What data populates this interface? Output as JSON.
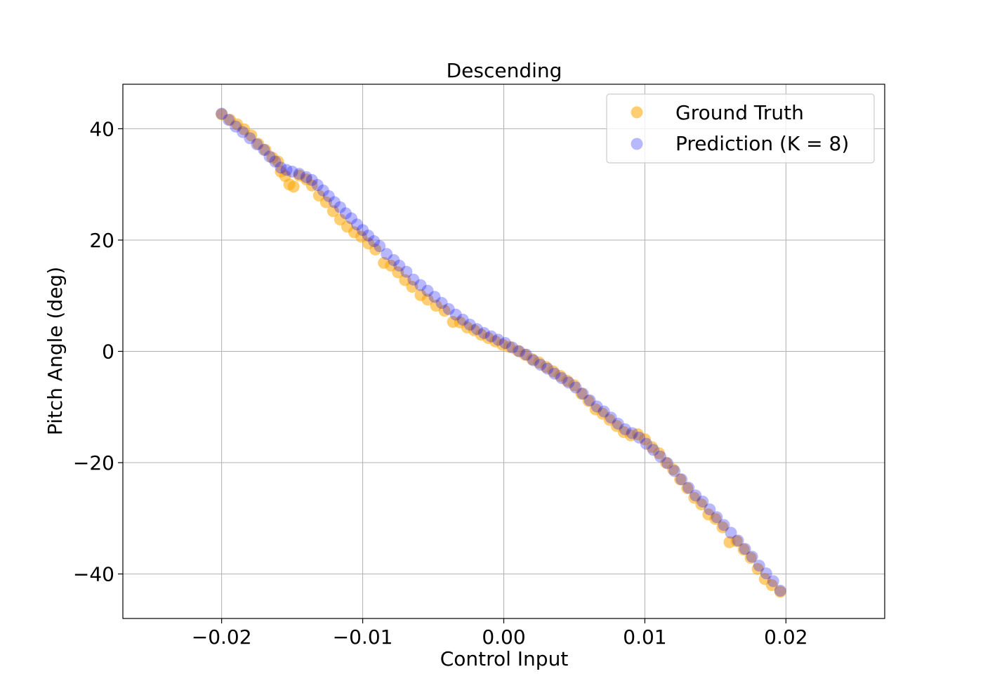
{
  "chart_data": {
    "type": "scatter",
    "title": "Descending",
    "xlabel": "Control Input",
    "ylabel": "Pitch Angle (deg)",
    "xlim": [
      -0.027,
      0.027
    ],
    "ylim": [
      -48,
      48
    ],
    "xticks": [
      -0.02,
      -0.01,
      0.0,
      0.01,
      0.02
    ],
    "xtick_labels": [
      "−0.02",
      "−0.01",
      "0.00",
      "0.01",
      "0.02"
    ],
    "yticks": [
      -40,
      -20,
      0,
      20,
      40
    ],
    "ytick_labels": [
      "−40",
      "−20",
      "0",
      "20",
      "40"
    ],
    "grid": true,
    "legend_position": "top-right",
    "series": [
      {
        "name": "Ground Truth",
        "color": "#FFA500",
        "opacity": 0.55,
        "points": [
          [
            -0.02,
            42.6
          ],
          [
            -0.0194,
            41.6
          ],
          [
            -0.0189,
            40.8
          ],
          [
            -0.0184,
            39.9
          ],
          [
            -0.0179,
            38.8
          ],
          [
            -0.0174,
            37.3
          ],
          [
            -0.0169,
            36.2
          ],
          [
            -0.0164,
            34.8
          ],
          [
            -0.016,
            34.1
          ],
          [
            -0.0158,
            32.3
          ],
          [
            -0.0155,
            31.5
          ],
          [
            -0.0152,
            30.0
          ],
          [
            -0.0149,
            29.6
          ],
          [
            -0.0145,
            31.6
          ],
          [
            -0.014,
            30.9
          ],
          [
            -0.0136,
            29.8
          ],
          [
            -0.0131,
            28.0
          ],
          [
            -0.0126,
            26.8
          ],
          [
            -0.0121,
            25.2
          ],
          [
            -0.0116,
            23.7
          ],
          [
            -0.0111,
            22.4
          ],
          [
            -0.0106,
            21.4
          ],
          [
            -0.0101,
            20.6
          ],
          [
            -0.0096,
            19.4
          ],
          [
            -0.0091,
            18.3
          ],
          [
            -0.0085,
            15.9
          ],
          [
            -0.008,
            15.4
          ],
          [
            -0.0075,
            14.2
          ],
          [
            -0.007,
            12.8
          ],
          [
            -0.0065,
            11.6
          ],
          [
            -0.0059,
            10.1
          ],
          [
            -0.0054,
            9.3
          ],
          [
            -0.0048,
            8.2
          ],
          [
            -0.0042,
            7.3
          ],
          [
            -0.0036,
            5.3
          ],
          [
            -0.0031,
            5.2
          ],
          [
            -0.0026,
            4.3
          ],
          [
            -0.0021,
            3.8
          ],
          [
            -0.0016,
            3.0
          ],
          [
            -0.0011,
            2.4
          ],
          [
            -0.0006,
            1.8
          ],
          [
            -0.0001,
            1.2
          ],
          [
            0.0004,
            0.8
          ],
          [
            0.001,
            0.1
          ],
          [
            0.0015,
            -0.6
          ],
          [
            0.002,
            -1.4
          ],
          [
            0.0025,
            -2.0
          ],
          [
            0.003,
            -2.8
          ],
          [
            0.0035,
            -3.6
          ],
          [
            0.004,
            -4.4
          ],
          [
            0.0045,
            -5.3
          ],
          [
            0.005,
            -6.1
          ],
          [
            0.0055,
            -7.6
          ],
          [
            0.006,
            -8.9
          ],
          [
            0.0065,
            -10.4
          ],
          [
            0.007,
            -11.2
          ],
          [
            0.0075,
            -12.3
          ],
          [
            0.008,
            -13.4
          ],
          [
            0.0085,
            -14.5
          ],
          [
            0.009,
            -15.1
          ],
          [
            0.0095,
            -14.9
          ],
          [
            0.01,
            -15.8
          ],
          [
            0.0105,
            -17.2
          ],
          [
            0.011,
            -18.3
          ],
          [
            0.0115,
            -20.0
          ],
          [
            0.012,
            -21.2
          ],
          [
            0.0125,
            -23.0
          ],
          [
            0.013,
            -24.6
          ],
          [
            0.0135,
            -26.3
          ],
          [
            0.014,
            -27.5
          ],
          [
            0.0145,
            -29.3
          ],
          [
            0.015,
            -30.1
          ],
          [
            0.0155,
            -31.6
          ],
          [
            0.016,
            -34.3
          ],
          [
            0.0165,
            -34.1
          ],
          [
            0.017,
            -35.6
          ],
          [
            0.0175,
            -37.1
          ],
          [
            0.018,
            -39.1
          ],
          [
            0.0185,
            -40.9
          ],
          [
            0.019,
            -42.0
          ],
          [
            0.0196,
            -43.2
          ]
        ]
      },
      {
        "name": "Prediction (K = 8)",
        "color": "#0000FF",
        "opacity": 0.28,
        "points": [
          [
            -0.02,
            42.7
          ],
          [
            -0.0195,
            41.6
          ],
          [
            -0.019,
            40.4
          ],
          [
            -0.0185,
            39.4
          ],
          [
            -0.018,
            38.3
          ],
          [
            -0.0175,
            37.2
          ],
          [
            -0.017,
            36.2
          ],
          [
            -0.0166,
            35.0
          ],
          [
            -0.0162,
            34.1
          ],
          [
            -0.0158,
            33.0
          ],
          [
            -0.0154,
            32.6
          ],
          [
            -0.015,
            32.3
          ],
          [
            -0.0145,
            31.9
          ],
          [
            -0.014,
            31.3
          ],
          [
            -0.0136,
            30.8
          ],
          [
            -0.0132,
            29.9
          ],
          [
            -0.0128,
            28.9
          ],
          [
            -0.0124,
            27.9
          ],
          [
            -0.012,
            26.8
          ],
          [
            -0.0116,
            25.9
          ],
          [
            -0.0112,
            24.8
          ],
          [
            -0.0108,
            23.9
          ],
          [
            -0.0104,
            22.8
          ],
          [
            -0.01,
            21.8
          ],
          [
            -0.0096,
            20.8
          ],
          [
            -0.0092,
            19.8
          ],
          [
            -0.0088,
            18.9
          ],
          [
            -0.0083,
            17.5
          ],
          [
            -0.0078,
            16.4
          ],
          [
            -0.0074,
            15.4
          ],
          [
            -0.0069,
            14.3
          ],
          [
            -0.0064,
            12.9
          ],
          [
            -0.0059,
            11.9
          ],
          [
            -0.0054,
            10.9
          ],
          [
            -0.0049,
            9.8
          ],
          [
            -0.0044,
            8.7
          ],
          [
            -0.0039,
            7.6
          ],
          [
            -0.0034,
            6.6
          ],
          [
            -0.0029,
            5.7
          ],
          [
            -0.0024,
            4.8
          ],
          [
            -0.0019,
            4.0
          ],
          [
            -0.0014,
            3.3
          ],
          [
            -0.0009,
            2.7
          ],
          [
            -0.0004,
            2.1
          ],
          [
            0.0001,
            1.5
          ],
          [
            0.0006,
            0.7
          ],
          [
            0.0011,
            0.0
          ],
          [
            0.0016,
            -0.6
          ],
          [
            0.0021,
            -1.6
          ],
          [
            0.0026,
            -2.4
          ],
          [
            0.0031,
            -3.1
          ],
          [
            0.0036,
            -4.0
          ],
          [
            0.0041,
            -4.8
          ],
          [
            0.0046,
            -5.6
          ],
          [
            0.0051,
            -6.5
          ],
          [
            0.0056,
            -7.6
          ],
          [
            0.0061,
            -8.8
          ],
          [
            0.0066,
            -9.9
          ],
          [
            0.0071,
            -10.8
          ],
          [
            0.0076,
            -11.9
          ],
          [
            0.0081,
            -13.0
          ],
          [
            0.0086,
            -14.0
          ],
          [
            0.0091,
            -14.7
          ],
          [
            0.0096,
            -15.5
          ],
          [
            0.0101,
            -16.6
          ],
          [
            0.0106,
            -17.7
          ],
          [
            0.0111,
            -18.9
          ],
          [
            0.0116,
            -20.1
          ],
          [
            0.0121,
            -21.5
          ],
          [
            0.0126,
            -23.0
          ],
          [
            0.0131,
            -24.5
          ],
          [
            0.0136,
            -25.9
          ],
          [
            0.0141,
            -27.0
          ],
          [
            0.0146,
            -28.4
          ],
          [
            0.0151,
            -29.8
          ],
          [
            0.0156,
            -31.2
          ],
          [
            0.0161,
            -32.6
          ],
          [
            0.0166,
            -34.0
          ],
          [
            0.0171,
            -35.5
          ],
          [
            0.0176,
            -36.9
          ],
          [
            0.0181,
            -38.5
          ],
          [
            0.0186,
            -39.9
          ],
          [
            0.0191,
            -41.3
          ],
          [
            0.0196,
            -43.0
          ]
        ]
      }
    ]
  }
}
